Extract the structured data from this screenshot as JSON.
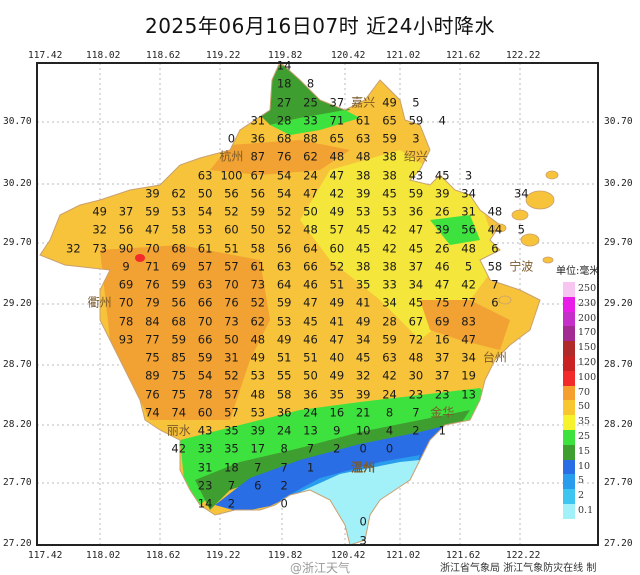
{
  "title": "2025年06月16日07时  近24小时降水",
  "axes": {
    "lon_labels": [
      "117.42",
      "118.02",
      "118.62",
      "119.22",
      "119.82",
      "120.42",
      "121.02",
      "121.62",
      "122.22"
    ],
    "lat_labels": [
      "30.70",
      "30.20",
      "29.70",
      "29.20",
      "28.70",
      "28.20",
      "27.70",
      "27.20"
    ]
  },
  "map": {
    "cities": [
      "杭州",
      "嘉兴",
      "绍兴",
      "宁波",
      "金华",
      "衢州",
      "丽水",
      "温州",
      "台州"
    ],
    "grid": [
      [
        "",
        "",
        "",
        "",
        "",
        "",
        "",
        "",
        "",
        "14"
      ],
      [
        "",
        "",
        "",
        "",
        "",
        "",
        "",
        "",
        "",
        "18",
        "8"
      ],
      [
        "",
        "",
        "",
        "",
        "",
        "",
        "",
        "",
        "",
        "27",
        "25",
        "37",
        "",
        "49",
        "5"
      ],
      [
        "",
        "",
        "",
        "",
        "",
        "",
        "",
        "",
        "31",
        "28",
        "33",
        "71",
        "61",
        "65",
        "59",
        "4"
      ],
      [
        "",
        "",
        "",
        "",
        "",
        "",
        "",
        "0",
        "36",
        "68",
        "88",
        "65",
        "63",
        "59",
        "3"
      ],
      [
        "",
        "",
        "",
        "",
        "",
        "",
        "",
        "",
        "87",
        "76",
        "62",
        "48",
        "48",
        "38"
      ],
      [
        "",
        "",
        "",
        "",
        "",
        "",
        "63",
        "100",
        "67",
        "54",
        "24",
        "47",
        "38",
        "38",
        "43",
        "45",
        "3"
      ],
      [
        "",
        "",
        "",
        "",
        "39",
        "62",
        "50",
        "56",
        "56",
        "54",
        "47",
        "42",
        "39",
        "45",
        "59",
        "39",
        "34",
        "",
        "34"
      ],
      [
        "",
        "",
        "49",
        "37",
        "59",
        "53",
        "54",
        "52",
        "59",
        "52",
        "50",
        "49",
        "53",
        "53",
        "36",
        "26",
        "31",
        "48"
      ],
      [
        "",
        "",
        "32",
        "56",
        "47",
        "58",
        "53",
        "60",
        "50",
        "52",
        "48",
        "57",
        "45",
        "42",
        "47",
        "39",
        "56",
        "44",
        "5"
      ],
      [
        "",
        "32",
        "73",
        "90",
        "70",
        "68",
        "61",
        "51",
        "58",
        "56",
        "64",
        "60",
        "45",
        "42",
        "45",
        "26",
        "48",
        "6"
      ],
      [
        "",
        "",
        "",
        "9",
        "71",
        "69",
        "57",
        "57",
        "61",
        "63",
        "66",
        "52",
        "38",
        "38",
        "37",
        "46",
        "5",
        "58"
      ],
      [
        "",
        "",
        "",
        "69",
        "76",
        "59",
        "63",
        "70",
        "73",
        "64",
        "46",
        "51",
        "35",
        "33",
        "34",
        "47",
        "42",
        "7"
      ],
      [
        "",
        "",
        "",
        "70",
        "79",
        "56",
        "66",
        "76",
        "52",
        "59",
        "47",
        "49",
        "41",
        "34",
        "45",
        "75",
        "77",
        "6"
      ],
      [
        "",
        "",
        "",
        "78",
        "84",
        "68",
        "70",
        "73",
        "62",
        "53",
        "45",
        "41",
        "49",
        "28",
        "67",
        "69",
        "83"
      ],
      [
        "",
        "",
        "",
        "93",
        "77",
        "59",
        "66",
        "50",
        "48",
        "49",
        "46",
        "47",
        "34",
        "59",
        "72",
        "16",
        "47"
      ],
      [
        "",
        "",
        "",
        "",
        "75",
        "85",
        "59",
        "31",
        "49",
        "51",
        "51",
        "40",
        "45",
        "63",
        "48",
        "37",
        "34"
      ],
      [
        "",
        "",
        "",
        "",
        "89",
        "75",
        "54",
        "52",
        "53",
        "55",
        "50",
        "49",
        "32",
        "42",
        "30",
        "37",
        "19"
      ],
      [
        "",
        "",
        "",
        "",
        "76",
        "75",
        "78",
        "57",
        "48",
        "58",
        "36",
        "35",
        "39",
        "24",
        "23",
        "23",
        "13"
      ],
      [
        "",
        "",
        "",
        "",
        "74",
        "74",
        "60",
        "57",
        "53",
        "36",
        "24",
        "16",
        "21",
        "8",
        "7"
      ],
      [
        "",
        "",
        "",
        "",
        "",
        "",
        "43",
        "35",
        "39",
        "24",
        "13",
        "9",
        "10",
        "4",
        "2",
        "1"
      ],
      [
        "",
        "",
        "",
        "",
        "",
        "42",
        "33",
        "35",
        "17",
        "8",
        "7",
        "2",
        "0",
        "0"
      ],
      [
        "",
        "",
        "",
        "",
        "",
        "",
        "31",
        "18",
        "7",
        "7",
        "1"
      ],
      [
        "",
        "",
        "",
        "",
        "",
        "",
        "23",
        "7",
        "6",
        "2"
      ],
      [
        "",
        "",
        "",
        "",
        "",
        "",
        "14",
        "2",
        "",
        "0"
      ],
      [
        "",
        "",
        "",
        "",
        "",
        "",
        "",
        "",
        "",
        "",
        "",
        "",
        "0"
      ],
      [
        "",
        "",
        "",
        "",
        "",
        "",
        "",
        "",
        "",
        "",
        "",
        "",
        "3"
      ]
    ]
  },
  "legend": {
    "title": "单位:毫米",
    "items": [
      {
        "label": "250",
        "color": "#f6c6f0"
      },
      {
        "label": "230",
        "color": "#e81ee8"
      },
      {
        "label": "200",
        "color": "#c52ec8"
      },
      {
        "label": "170",
        "color": "#a22a92"
      },
      {
        "label": "150",
        "color": "#b02a2a"
      },
      {
        "label": "120",
        "color": "#c92222"
      },
      {
        "label": "100",
        "color": "#f22a2a"
      },
      {
        "label": "70",
        "color": "#f5a02e"
      },
      {
        "label": "50",
        "color": "#f8c630"
      },
      {
        "label": "35",
        "color": "#f6f22e"
      },
      {
        "label": "25",
        "color": "#3ee23e"
      },
      {
        "label": "15",
        "color": "#3f9e30"
      },
      {
        "label": "10",
        "color": "#2a6ee6"
      },
      {
        "label": "5",
        "color": "#2a9cee"
      },
      {
        "label": "2",
        "color": "#3ec6f0"
      },
      {
        "label": "0.1",
        "color": "#a2f0f8"
      }
    ]
  },
  "footer": "浙江省气象局   浙江气象防灾在线  制",
  "watermark": "@浙江天气"
}
